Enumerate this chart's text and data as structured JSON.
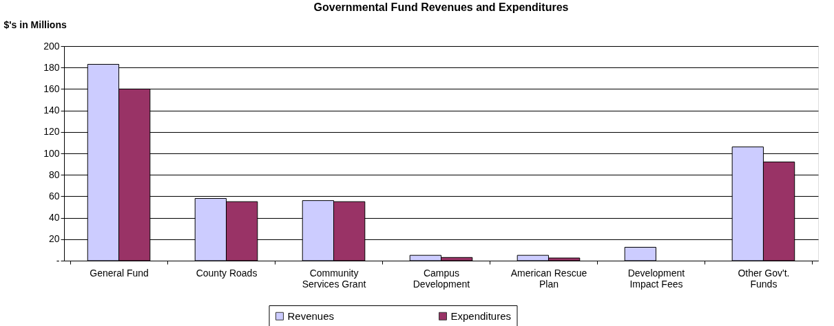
{
  "chart_data": {
    "type": "bar",
    "title": "Governmental Fund Revenues and Expenditures",
    "ylabel": "$'s in Millions",
    "categories": [
      "General Fund",
      "County Roads",
      "Community Services Grant",
      "Campus Development",
      "American Rescue Plan",
      "Development Impact Fees",
      "Other Gov't. Funds"
    ],
    "series": [
      {
        "name": "Revenues",
        "color": "#ccccff",
        "values": [
          183,
          58,
          56,
          5,
          5,
          12.5,
          106
        ]
      },
      {
        "name": "Expenditures",
        "color": "#993366",
        "values": [
          160,
          55,
          55,
          3,
          2.5,
          null,
          92
        ]
      }
    ],
    "ylim": [
      0,
      200
    ],
    "yticks": [
      {
        "value": 0,
        "label": "-"
      },
      20,
      40,
      60,
      80,
      100,
      120,
      140,
      160,
      180,
      200
    ],
    "grid": "y",
    "legend": "bottom"
  }
}
